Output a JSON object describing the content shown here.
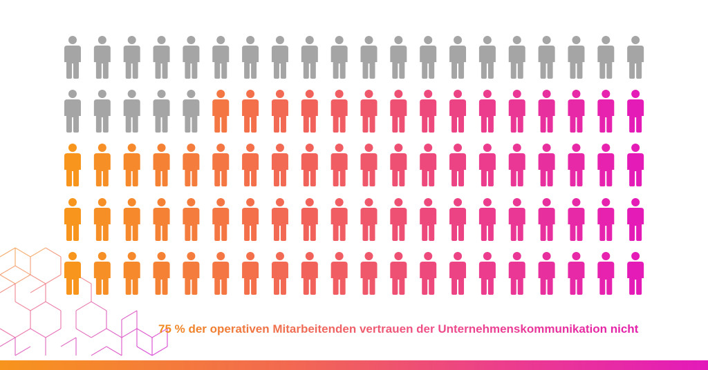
{
  "chart_data": {
    "type": "pictogram",
    "caption": "75 % der operativen Mitarbeitenden vertrauen der Unternehmenskommunikation nicht",
    "rows": 5,
    "columns": 20,
    "total": 100,
    "highlighted": 75,
    "colors": {
      "neutral": "#a5a5a5",
      "gradient_start": "#f7951d",
      "gradient_mid": "#f05a66",
      "gradient_end": "#e51bb8"
    }
  }
}
